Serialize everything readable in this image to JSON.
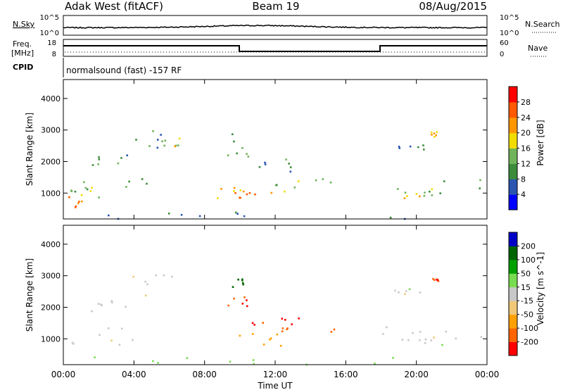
{
  "header": {
    "radar": "Adak West (fitACF)",
    "beam": "Beam 19",
    "date": "08/Aug/2015"
  },
  "noise_panel": {
    "left_label": "N.Sky",
    "right_label": "N.Search",
    "left_ticks": [
      "10^5",
      "10^0"
    ],
    "right_ticks": [
      "10^5",
      "10^0"
    ]
  },
  "freq_panel": {
    "left_label_line1": "Freq.",
    "left_label_line2": "[MHz]",
    "right_label": "Nave",
    "left_ticks": [
      "18",
      "8"
    ],
    "right_ticks": [
      "60",
      "0"
    ]
  },
  "cpid_panel": {
    "label": "CPID",
    "text": "normalsound (fast) -157 RF"
  },
  "colors": {
    "power_scale": [
      "#0000ff",
      "#2a55b0",
      "#3c8c3c",
      "#6fb45a",
      "#f0dc00",
      "#ff9600",
      "#ff5a00",
      "#ff0000"
    ],
    "velocity_scale": [
      "#ff0000",
      "#ff6400",
      "#ffa000",
      "#f0c878",
      "#c8c8c8",
      "#78dc50",
      "#00a000",
      "#006400",
      "#0000c8"
    ]
  },
  "chart_data": [
    {
      "type": "heatmap",
      "name": "power",
      "ylabel": "Slant Range [km]",
      "ylim": [
        180,
        4600
      ],
      "yticks": [
        1000,
        2000,
        3000,
        4000
      ],
      "colorbar_label": "Power [dB]",
      "colorbar_ticks": [
        4,
        8,
        12,
        16,
        20,
        24,
        28
      ],
      "colorbar_range": [
        0,
        32
      ],
      "xlim": [
        0,
        24
      ],
      "xticks": [
        "00:00",
        "04:00",
        "08:00",
        "12:00",
        "16:00",
        "20:00",
        "00:00"
      ],
      "regions": [
        {
          "t": [
            0.2,
            5.0
          ],
          "r": [
            1000,
            1500
          ],
          "value": 12
        },
        {
          "t": [
            0.2,
            2.2
          ],
          "r": [
            850,
            1200
          ],
          "value": 16
        },
        {
          "t": [
            0.0,
            1.0
          ],
          "r": [
            500,
            900
          ],
          "value": 24
        },
        {
          "t": [
            1.5,
            4.5
          ],
          "r": [
            1900,
            2300
          ],
          "value": 10
        },
        {
          "t": [
            3.5,
            6.5
          ],
          "r": [
            2400,
            3100
          ],
          "value": 10
        },
        {
          "t": [
            5.5,
            7.2
          ],
          "r": [
            2500,
            2800
          ],
          "value": 18
        },
        {
          "t": [
            8.0,
            12.5
          ],
          "r": [
            700,
            1200
          ],
          "value": 20
        },
        {
          "t": [
            9.5,
            11.0
          ],
          "r": [
            850,
            1050
          ],
          "value": 26
        },
        {
          "t": [
            12.0,
            15.5
          ],
          "r": [
            1200,
            1500
          ],
          "value": 14
        },
        {
          "t": [
            11.0,
            13.5
          ],
          "r": [
            1700,
            2100
          ],
          "value": 10
        },
        {
          "t": [
            9.0,
            10.5
          ],
          "r": [
            1900,
            2900
          ],
          "value": 12
        },
        {
          "t": [
            18.0,
            24.0
          ],
          "r": [
            1000,
            1600
          ],
          "value": 12
        },
        {
          "t": [
            19.0,
            21.5
          ],
          "r": [
            800,
            1200
          ],
          "value": 18
        },
        {
          "t": [
            18.5,
            20.5
          ],
          "r": [
            2300,
            2600
          ],
          "value": 8
        },
        {
          "t": [
            20.8,
            21.2
          ],
          "r": [
            2800,
            3000
          ],
          "value": 20
        },
        {
          "t": [
            0.0,
            24.0
          ],
          "r": [
            200,
            450
          ],
          "value": 8
        }
      ]
    },
    {
      "type": "heatmap",
      "name": "velocity",
      "ylabel": "Slant Range [km]",
      "ylim": [
        180,
        4600
      ],
      "yticks": [
        1000,
        2000,
        3000,
        4000
      ],
      "colorbar_label": "Velocity [m s^-1]",
      "colorbar_ticks": [
        "200",
        "100",
        "50",
        "15",
        "-15",
        "-50",
        "-100",
        "-200"
      ],
      "xlabel": "Time UT",
      "xlim": [
        0,
        24
      ],
      "xticks": [
        "00:00",
        "04:00",
        "08:00",
        "12:00",
        "16:00",
        "20:00",
        "00:00"
      ],
      "regions": [
        {
          "t": [
            0.2,
            5.0
          ],
          "r": [
            800,
            1500
          ],
          "value": 0
        },
        {
          "t": [
            1.5,
            4.5
          ],
          "r": [
            1900,
            2300
          ],
          "value": 0
        },
        {
          "t": [
            3.5,
            6.5
          ],
          "r": [
            2400,
            3100
          ],
          "value": 0
        },
        {
          "t": [
            8.0,
            12.5
          ],
          "r": [
            750,
            1200
          ],
          "value": -70
        },
        {
          "t": [
            12.0,
            15.5
          ],
          "r": [
            1200,
            1400
          ],
          "value": -180
        },
        {
          "t": [
            10.5,
            13.5
          ],
          "r": [
            1450,
            1700
          ],
          "value": -200
        },
        {
          "t": [
            9.0,
            10.5
          ],
          "r": [
            2000,
            2400
          ],
          "value": -200
        },
        {
          "t": [
            9.5,
            10.2
          ],
          "r": [
            2600,
            3000
          ],
          "value": 150
        },
        {
          "t": [
            18.0,
            24.0
          ],
          "r": [
            1000,
            1500
          ],
          "value": 0
        },
        {
          "t": [
            19.0,
            21.5
          ],
          "r": [
            800,
            1100
          ],
          "value": 0
        },
        {
          "t": [
            18.5,
            20.5
          ],
          "r": [
            2400,
            2600
          ],
          "value": 0
        },
        {
          "t": [
            20.8,
            21.2
          ],
          "r": [
            2800,
            3000
          ],
          "value": -200
        },
        {
          "t": [
            0.0,
            24.0
          ],
          "r": [
            200,
            450
          ],
          "value": 30
        }
      ]
    }
  ]
}
